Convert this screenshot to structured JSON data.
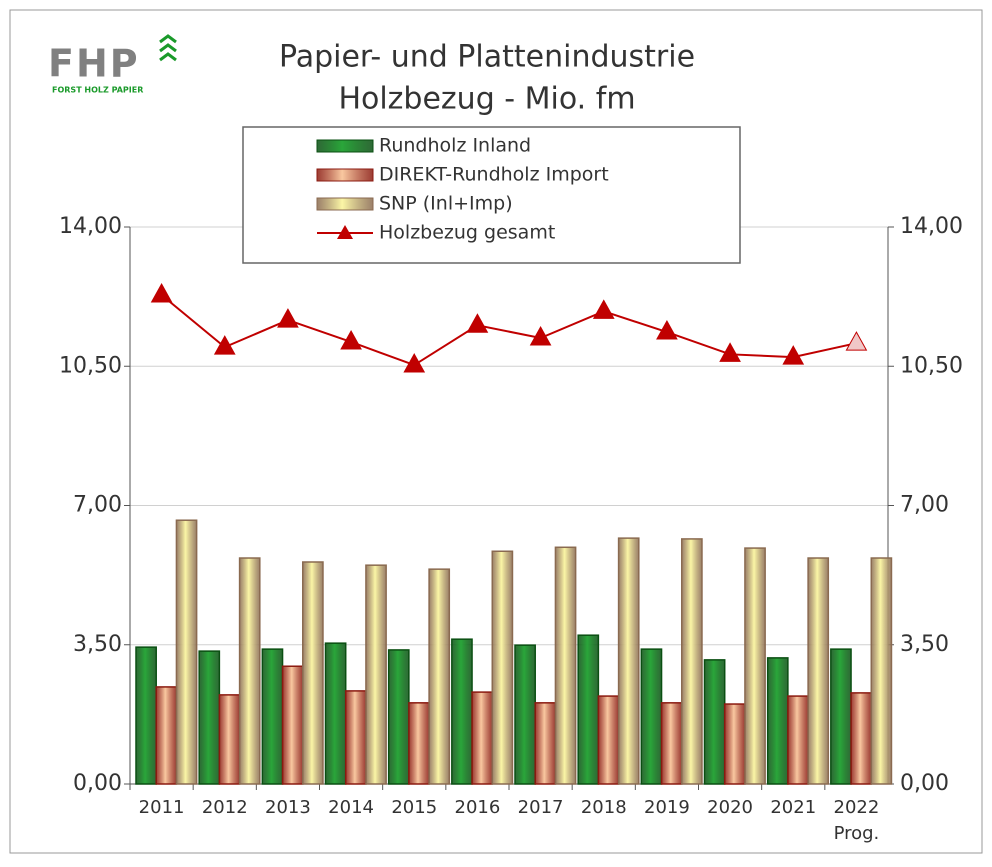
{
  "logo": {
    "name": "FHP",
    "tagline": "FORST HOLZ PAPIER"
  },
  "chart_data": {
    "type": "bar",
    "title": [
      "Papier- und Plattenindustrie",
      "Holzbezug - Mio. fm"
    ],
    "categories": [
      "2011",
      "2012",
      "2013",
      "2014",
      "2015",
      "2016",
      "2017",
      "2018",
      "2019",
      "2020",
      "2021",
      "2022"
    ],
    "x_note": "Prog.",
    "series": [
      {
        "name": "Rundholz Inland",
        "type": "bar",
        "color": "#2aa63a",
        "stroke": "#0a4f12",
        "values": [
          3.44,
          3.34,
          3.39,
          3.54,
          3.37,
          3.64,
          3.49,
          3.74,
          3.39,
          3.12,
          3.17,
          3.39
        ]
      },
      {
        "name": "DIREKT-Rundholz Import",
        "type": "bar",
        "color": "#f9c8a0",
        "stroke": "#8b1a10",
        "values": [
          2.44,
          2.24,
          2.96,
          2.34,
          2.04,
          2.31,
          2.04,
          2.21,
          2.04,
          2.01,
          2.21,
          2.29
        ]
      },
      {
        "name": "SNP (Inl+Imp)",
        "type": "bar",
        "color": "#fbf6a6",
        "stroke": "#8a6a50",
        "values": [
          6.63,
          5.68,
          5.58,
          5.5,
          5.4,
          5.85,
          5.95,
          6.18,
          6.16,
          5.93,
          5.68,
          5.68
        ]
      },
      {
        "name": "Holzbezug gesamt",
        "type": "line",
        "color": "#c00000",
        "last_marker_fill": "#f0c8c8",
        "values": [
          12.29,
          10.98,
          11.66,
          11.11,
          10.53,
          11.53,
          11.21,
          11.88,
          11.36,
          10.8,
          10.73,
          11.08
        ]
      }
    ],
    "ylim": [
      0,
      14
    ],
    "yticks": [
      {
        "value": 0,
        "label": "0,00"
      },
      {
        "value": 3.5,
        "label": "3,50"
      },
      {
        "value": 7,
        "label": "7,00"
      },
      {
        "value": 10.5,
        "label": "10,50"
      },
      {
        "value": 14,
        "label": "14,00"
      }
    ],
    "y2lim": [
      0,
      14
    ],
    "y2ticks": [
      {
        "value": 0,
        "label": "0,00"
      },
      {
        "value": 3.5,
        "label": "3,50"
      },
      {
        "value": 7,
        "label": "7,00"
      },
      {
        "value": 10.5,
        "label": "10,50"
      },
      {
        "value": 14,
        "label": "14,00"
      }
    ],
    "grid": true,
    "legend": "top"
  }
}
